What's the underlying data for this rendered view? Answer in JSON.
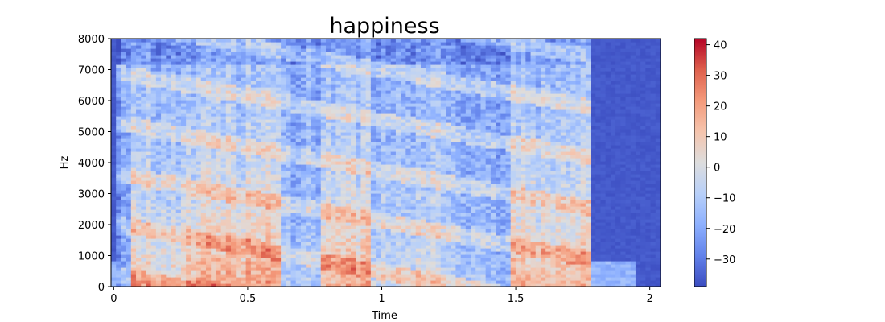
{
  "chart_data": {
    "type": "heatmap",
    "title": "happiness",
    "xlabel": "Time",
    "ylabel": "Hz",
    "xlim": [
      -0.01,
      2.04
    ],
    "ylim": [
      0,
      8000
    ],
    "x_ticks": [
      0,
      0.5,
      1,
      1.5,
      2
    ],
    "x_tick_labels": [
      "0",
      "0.5",
      "1",
      "1.5",
      "2"
    ],
    "y_ticks": [
      0,
      1000,
      2000,
      3000,
      4000,
      5000,
      6000,
      7000,
      8000
    ],
    "y_tick_labels": [
      "0",
      "1000",
      "2000",
      "3000",
      "4000",
      "5000",
      "6000",
      "7000",
      "8000"
    ],
    "colorbar": {
      "colormap": "coolwarm",
      "min": -39,
      "max": 42,
      "ticks": [
        40,
        30,
        20,
        10,
        0,
        -10,
        -20,
        -30
      ],
      "tick_labels": [
        "40",
        "30",
        "20",
        "10",
        "0",
        "−10",
        "−20",
        "−30"
      ]
    },
    "grid": false,
    "segments": [
      {
        "t_start": 0.0,
        "t_end": 0.06,
        "level": -22
      },
      {
        "t_start": 0.06,
        "t_end": 0.27,
        "level": 12
      },
      {
        "t_start": 0.27,
        "t_end": 0.62,
        "level": 22
      },
      {
        "t_start": 0.62,
        "t_end": 0.77,
        "level": -8
      },
      {
        "t_start": 0.77,
        "t_end": 0.95,
        "level": 20
      },
      {
        "t_start": 0.95,
        "t_end": 1.22,
        "level": 2
      },
      {
        "t_start": 1.22,
        "t_end": 1.38,
        "level": -4
      },
      {
        "t_start": 1.38,
        "t_end": 1.49,
        "level": -12
      },
      {
        "t_start": 1.49,
        "t_end": 1.77,
        "level": 18
      },
      {
        "t_start": 1.77,
        "t_end": 2.04,
        "level": -35
      }
    ]
  }
}
